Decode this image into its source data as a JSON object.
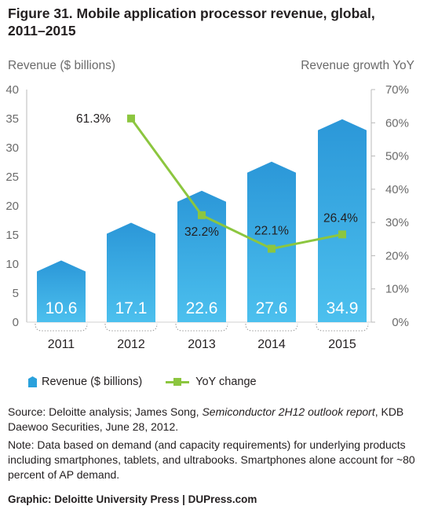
{
  "title": "Figure 31. Mobile application processor revenue, global, 2011–2015",
  "colors": {
    "bar_top": "#2b97d8",
    "bar_bottom": "#4cc0ee",
    "line": "#8cc63f",
    "axis_text": "#6b6b6b"
  },
  "chart_data": {
    "type": "bar",
    "title": "Figure 31. Mobile application processor revenue, global, 2011–2015",
    "categories": [
      "2011",
      "2012",
      "2013",
      "2014",
      "2015"
    ],
    "ylabel": "Revenue ($ billions)",
    "ylim": [
      0,
      40
    ],
    "yticks": [
      "0",
      "5",
      "10",
      "15",
      "20",
      "25",
      "30",
      "35",
      "40"
    ],
    "y2label": "Revenue growth YoY",
    "y2lim": [
      0,
      70
    ],
    "y2ticks": [
      "0%",
      "10%",
      "20%",
      "30%",
      "40%",
      "50%",
      "60%",
      "70%"
    ],
    "series": [
      {
        "name": "Revenue ($ billions)",
        "type": "bar",
        "axis": "left",
        "values": [
          10.6,
          17.1,
          22.6,
          27.6,
          34.9
        ],
        "labels": [
          "10.6",
          "17.1",
          "22.6",
          "27.6",
          "34.9"
        ]
      },
      {
        "name": "YoY change",
        "type": "line",
        "axis": "right",
        "values": [
          null,
          61.3,
          32.2,
          22.1,
          26.4
        ],
        "labels": [
          "",
          "61.3%",
          "32.2%",
          "22.1%",
          "26.4%"
        ]
      }
    ],
    "grid": false,
    "legend": "bottom-left"
  },
  "notes": {
    "source_prefix": "Source: Deloitte analysis; James Song, ",
    "source_italic": "Semiconductor 2H12 outlook report",
    "source_suffix": ", KDB Daewoo Securities, June 28, 2012.",
    "note": "Note: Data based on demand (and capacity requirements) for underlying products including smartphones, tablets, and ultrabooks. Smartphones alone account for ~80 percent of AP demand."
  },
  "credit": "Graphic: Deloitte University Press  |  DUPress.com"
}
